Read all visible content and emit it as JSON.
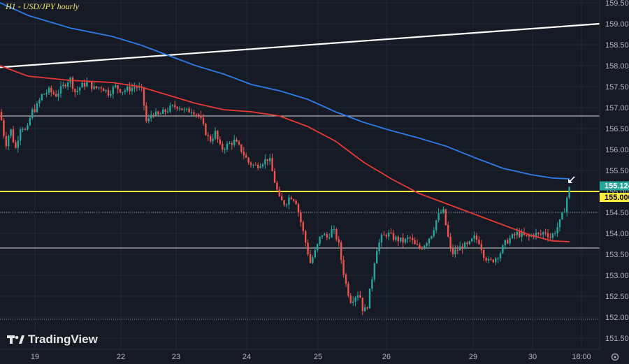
{
  "title": "H1 - USD/JPY hourly",
  "brand": "TradingView",
  "colors": {
    "background": "#161a25",
    "grid": "#232836",
    "up": "#26a69a",
    "down": "#ef5350",
    "ma_fast": "#e53935",
    "ma_slow": "#2f7ae5",
    "trendline": "#ffffff",
    "support_line": "#ffeb3b",
    "axis_text": "#b2b5be"
  },
  "chart_data": {
    "type": "candlestick",
    "title": "H1 - USD/JPY hourly",
    "y_ticks": [
      "159.500",
      "159.000",
      "158.500",
      "158.000",
      "157.500",
      "157.000",
      "156.500",
      "156.000",
      "155.500",
      "155.000",
      "154.500",
      "154.000",
      "153.500",
      "153.000",
      "152.500",
      "152.000",
      "151.500"
    ],
    "ylim": [
      151.3,
      159.55
    ],
    "x_ticks": [
      "19",
      "22",
      "23",
      "24",
      "25",
      "26",
      "29",
      "30",
      "18:00"
    ],
    "price_labels": [
      {
        "text": "155.124",
        "value": 155.124
      },
      {
        "text": "155.000",
        "value": 155.0
      }
    ],
    "horizontal_lines": [
      {
        "value": 155.0,
        "style": "solid-yellow"
      },
      {
        "value": 156.8,
        "style": "solid-white"
      },
      {
        "value": 153.65,
        "style": "solid-white"
      },
      {
        "value": 154.5,
        "style": "dotted"
      },
      {
        "value": 151.95,
        "style": "dotted"
      }
    ],
    "ma_slow": [
      [
        0,
        159.5
      ],
      [
        40,
        159.2
      ],
      [
        100,
        158.9
      ],
      [
        160,
        158.7
      ],
      [
        200,
        158.5
      ],
      [
        240,
        158.25
      ],
      [
        280,
        158.0
      ],
      [
        320,
        157.8
      ],
      [
        360,
        157.55
      ],
      [
        400,
        157.4
      ],
      [
        440,
        157.2
      ],
      [
        480,
        156.9
      ],
      [
        520,
        156.65
      ],
      [
        560,
        156.45
      ],
      [
        600,
        156.27
      ],
      [
        640,
        156.07
      ],
      [
        680,
        155.8
      ],
      [
        720,
        155.55
      ],
      [
        760,
        155.4
      ],
      [
        790,
        155.32
      ],
      [
        815,
        155.3
      ]
    ],
    "ma_fast": [
      [
        0,
        158.0
      ],
      [
        40,
        157.75
      ],
      [
        100,
        157.65
      ],
      [
        160,
        157.6
      ],
      [
        200,
        157.5
      ],
      [
        240,
        157.3
      ],
      [
        280,
        157.1
      ],
      [
        320,
        156.95
      ],
      [
        360,
        156.9
      ],
      [
        400,
        156.8
      ],
      [
        440,
        156.55
      ],
      [
        480,
        156.2
      ],
      [
        520,
        155.7
      ],
      [
        560,
        155.3
      ],
      [
        600,
        154.95
      ],
      [
        640,
        154.7
      ],
      [
        680,
        154.45
      ],
      [
        720,
        154.2
      ],
      [
        760,
        153.95
      ],
      [
        790,
        153.82
      ],
      [
        815,
        153.8
      ]
    ],
    "trendline": [
      [
        0,
        157.96
      ],
      [
        858,
        159.0
      ]
    ],
    "candles_path": [
      [
        0,
        156.9
      ],
      [
        8,
        156.1
      ],
      [
        15,
        156.5
      ],
      [
        22,
        156.0
      ],
      [
        30,
        156.6
      ],
      [
        38,
        156.4
      ],
      [
        45,
        156.9
      ],
      [
        52,
        157.0
      ],
      [
        60,
        157.3
      ],
      [
        70,
        157.4
      ],
      [
        80,
        157.3
      ],
      [
        90,
        157.5
      ],
      [
        100,
        157.7
      ],
      [
        108,
        157.35
      ],
      [
        115,
        157.5
      ],
      [
        125,
        157.6
      ],
      [
        135,
        157.45
      ],
      [
        145,
        157.5
      ],
      [
        155,
        157.35
      ],
      [
        165,
        157.5
      ],
      [
        175,
        157.4
      ],
      [
        185,
        157.45
      ],
      [
        195,
        157.5
      ],
      [
        203,
        157.4
      ],
      [
        210,
        156.6
      ],
      [
        218,
        156.9
      ],
      [
        225,
        156.8
      ],
      [
        235,
        156.9
      ],
      [
        245,
        157.0
      ],
      [
        255,
        157.05
      ],
      [
        265,
        156.9
      ],
      [
        275,
        156.95
      ],
      [
        285,
        156.8
      ],
      [
        292,
        156.5
      ],
      [
        300,
        156.2
      ],
      [
        308,
        156.4
      ],
      [
        316,
        156.0
      ],
      [
        325,
        156.1
      ],
      [
        335,
        156.2
      ],
      [
        345,
        156.0
      ],
      [
        355,
        155.7
      ],
      [
        365,
        155.6
      ],
      [
        375,
        155.7
      ],
      [
        385,
        155.8
      ],
      [
        392,
        155.3
      ],
      [
        400,
        154.8
      ],
      [
        408,
        154.7
      ],
      [
        415,
        154.9
      ],
      [
        423,
        154.8
      ],
      [
        430,
        154.3
      ],
      [
        437,
        153.8
      ],
      [
        444,
        153.3
      ],
      [
        452,
        153.6
      ],
      [
        460,
        154.0
      ],
      [
        468,
        153.9
      ],
      [
        476,
        154.1
      ],
      [
        484,
        153.8
      ],
      [
        490,
        153.2
      ],
      [
        496,
        152.7
      ],
      [
        502,
        152.4
      ],
      [
        508,
        152.5
      ],
      [
        514,
        152.6
      ],
      [
        520,
        152.1
      ],
      [
        526,
        152.3
      ],
      [
        532,
        152.9
      ],
      [
        538,
        153.6
      ],
      [
        546,
        153.9
      ],
      [
        554,
        154.0
      ],
      [
        562,
        153.9
      ],
      [
        570,
        153.85
      ],
      [
        578,
        153.8
      ],
      [
        586,
        153.9
      ],
      [
        594,
        153.7
      ],
      [
        602,
        153.65
      ],
      [
        610,
        153.8
      ],
      [
        618,
        154.0
      ],
      [
        626,
        154.4
      ],
      [
        634,
        154.55
      ],
      [
        640,
        154.0
      ],
      [
        646,
        153.5
      ],
      [
        654,
        153.6
      ],
      [
        662,
        153.7
      ],
      [
        670,
        153.7
      ],
      [
        678,
        153.9
      ],
      [
        686,
        153.8
      ],
      [
        692,
        153.5
      ],
      [
        700,
        153.3
      ],
      [
        708,
        153.4
      ],
      [
        716,
        153.55
      ],
      [
        724,
        153.8
      ],
      [
        732,
        153.9
      ],
      [
        740,
        154.0
      ],
      [
        748,
        153.95
      ],
      [
        756,
        153.9
      ],
      [
        764,
        154.0
      ],
      [
        772,
        153.95
      ],
      [
        780,
        154.05
      ],
      [
        788,
        153.9
      ],
      [
        796,
        154.1
      ],
      [
        802,
        154.3
      ],
      [
        808,
        154.6
      ],
      [
        813,
        155.0
      ],
      [
        816,
        155.124
      ]
    ]
  }
}
